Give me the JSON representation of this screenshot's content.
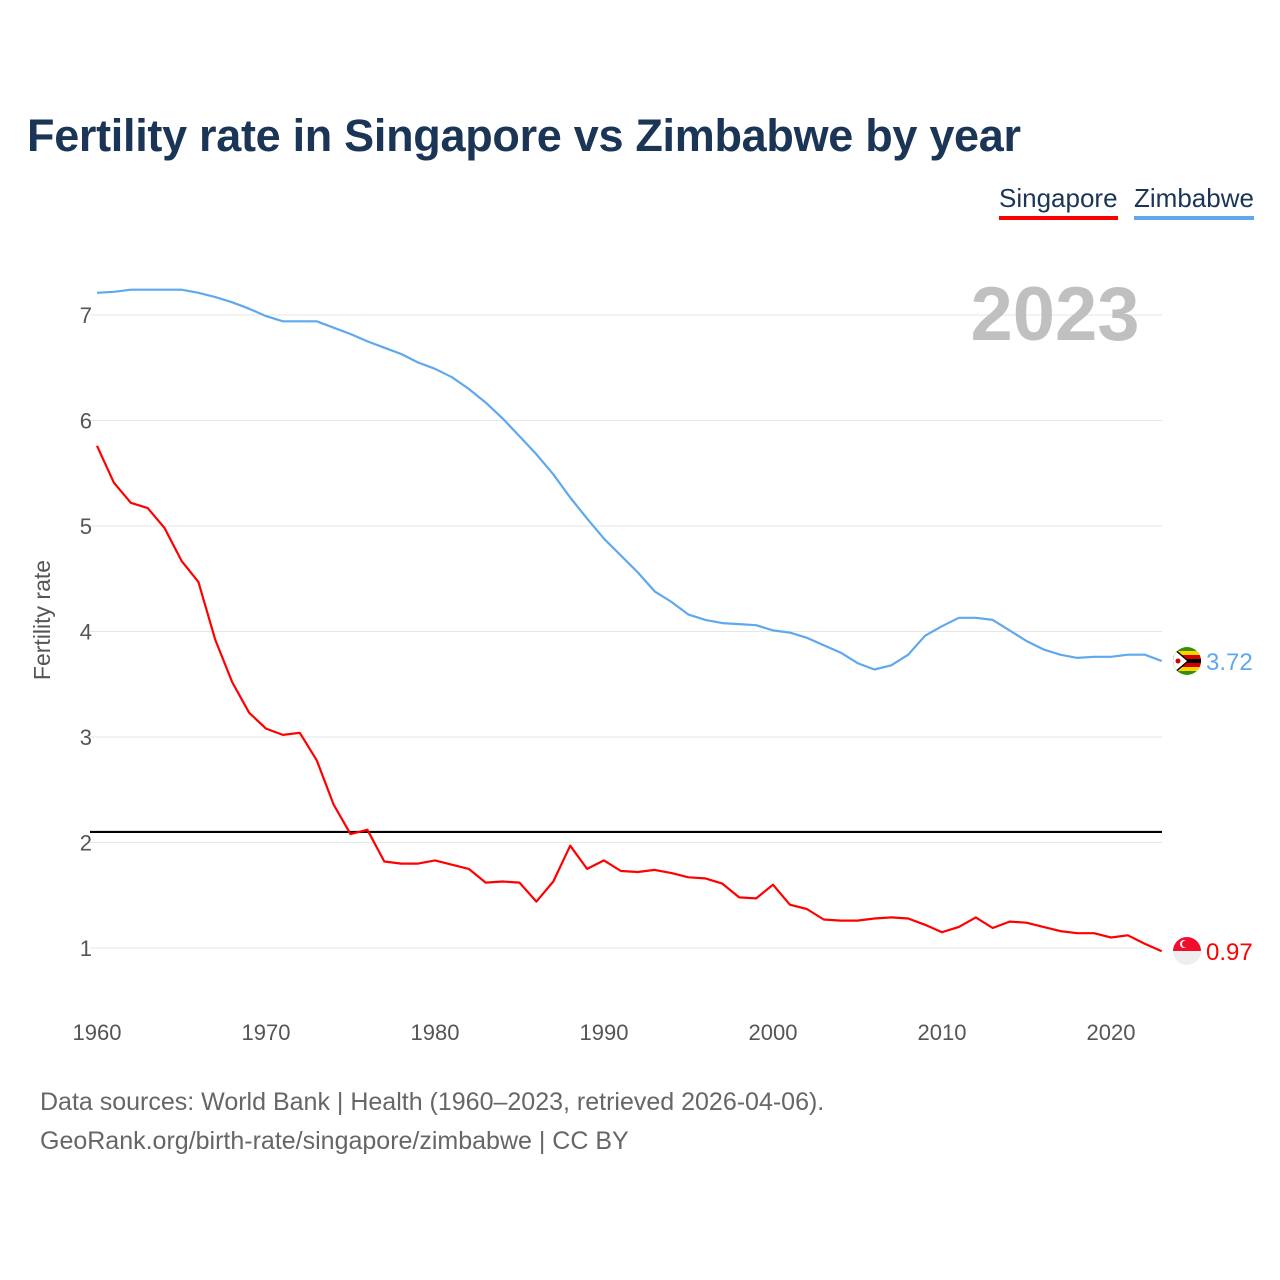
{
  "title": "Fertility rate in Singapore vs Zimbabwe by year",
  "legend": [
    {
      "label": "Singapore",
      "color": "#ff0000"
    },
    {
      "label": "Zimbabwe",
      "color": "#5fa8ee"
    }
  ],
  "footer": {
    "line1": "Data sources: World Bank | Health (1960–2023, retrieved 2026-04-06).",
    "line2": "GeoRank.org/birth-rate/singapore/zimbabwe | CC BY"
  },
  "chart_data": {
    "type": "line",
    "title": "Fertility rate in Singapore vs Zimbabwe by year",
    "year_label": "2023",
    "xlabel": "",
    "ylabel": "Fertility rate",
    "xlim": [
      1960,
      2023
    ],
    "ylim": [
      0.4,
      7.6
    ],
    "xticks": [
      1960,
      1970,
      1980,
      1990,
      2000,
      2010,
      2020
    ],
    "yticks": [
      1,
      2,
      3,
      4,
      5,
      6,
      7
    ],
    "grid": true,
    "legend_position": "top-right",
    "reference_line": 2.1,
    "x": [
      1960,
      1961,
      1962,
      1963,
      1964,
      1965,
      1966,
      1967,
      1968,
      1969,
      1970,
      1971,
      1972,
      1973,
      1974,
      1975,
      1976,
      1977,
      1978,
      1979,
      1980,
      1981,
      1982,
      1983,
      1984,
      1985,
      1986,
      1987,
      1988,
      1989,
      1990,
      1991,
      1992,
      1993,
      1994,
      1995,
      1996,
      1997,
      1998,
      1999,
      2000,
      2001,
      2002,
      2003,
      2004,
      2005,
      2006,
      2007,
      2008,
      2009,
      2010,
      2011,
      2012,
      2013,
      2014,
      2015,
      2016,
      2017,
      2018,
      2019,
      2020,
      2021,
      2022,
      2023
    ],
    "series": [
      {
        "name": "Singapore",
        "color": "#ff0000",
        "end_label": "0.97",
        "values": [
          5.76,
          5.41,
          5.22,
          5.17,
          4.98,
          4.67,
          4.47,
          3.92,
          3.52,
          3.23,
          3.08,
          3.02,
          3.04,
          2.78,
          2.36,
          2.08,
          2.12,
          1.82,
          1.8,
          1.8,
          1.83,
          1.79,
          1.75,
          1.62,
          1.63,
          1.62,
          1.44,
          1.63,
          1.97,
          1.75,
          1.83,
          1.73,
          1.72,
          1.74,
          1.71,
          1.67,
          1.66,
          1.61,
          1.48,
          1.47,
          1.6,
          1.41,
          1.37,
          1.27,
          1.26,
          1.26,
          1.28,
          1.29,
          1.28,
          1.22,
          1.15,
          1.2,
          1.29,
          1.19,
          1.25,
          1.24,
          1.2,
          1.16,
          1.14,
          1.14,
          1.1,
          1.12,
          1.04,
          0.97
        ]
      },
      {
        "name": "Zimbabwe",
        "color": "#5fa8ee",
        "end_label": "3.72",
        "values": [
          7.21,
          7.22,
          7.24,
          7.24,
          7.24,
          7.24,
          7.21,
          7.17,
          7.12,
          7.06,
          6.99,
          6.94,
          6.94,
          6.94,
          6.88,
          6.82,
          6.75,
          6.69,
          6.63,
          6.55,
          6.49,
          6.41,
          6.3,
          6.17,
          6.02,
          5.85,
          5.68,
          5.49,
          5.27,
          5.07,
          4.88,
          4.72,
          4.56,
          4.38,
          4.28,
          4.16,
          4.11,
          4.08,
          4.07,
          4.06,
          4.01,
          3.99,
          3.94,
          3.87,
          3.8,
          3.7,
          3.64,
          3.68,
          3.78,
          3.96,
          4.05,
          4.13,
          4.13,
          4.11,
          4.01,
          3.91,
          3.83,
          3.78,
          3.75,
          3.76,
          3.76,
          3.78,
          3.78,
          3.72
        ]
      }
    ]
  }
}
